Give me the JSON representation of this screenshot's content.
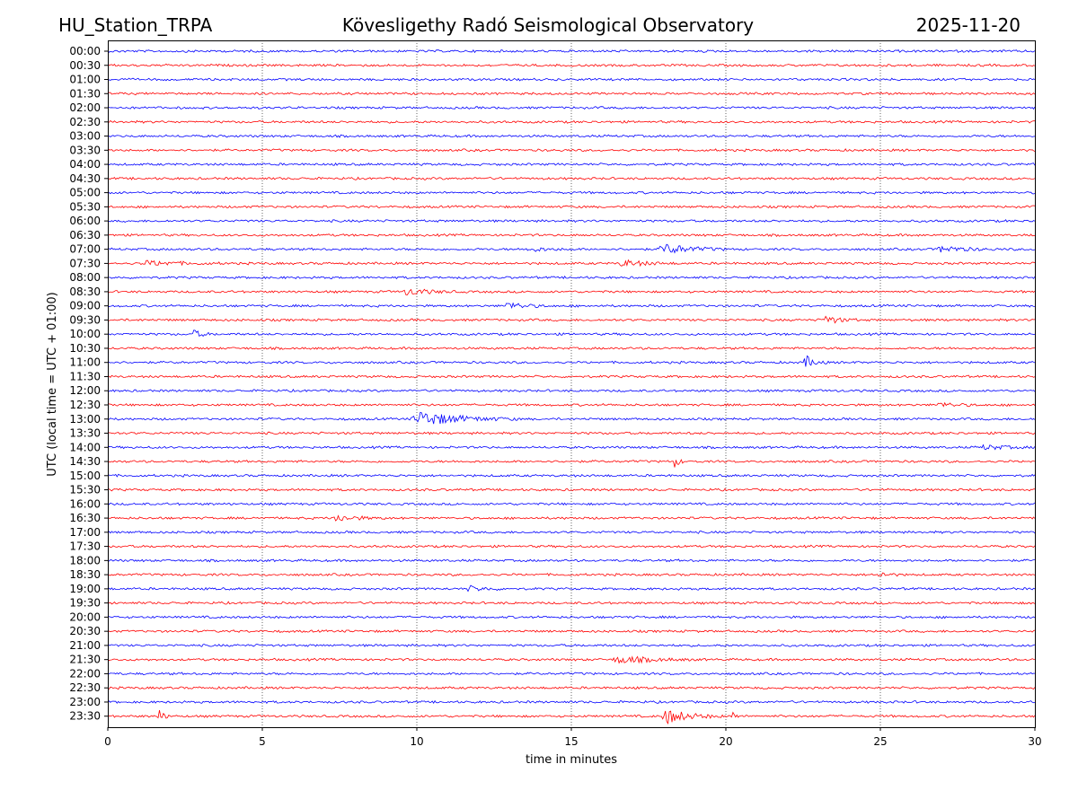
{
  "header": {
    "station": "HU_Station_TRPA",
    "observatory": "Kövesligethy Radó Seismological Observatory",
    "date": "2025-11-20"
  },
  "chart_data": {
    "type": "line",
    "title": "Kövesligethy Radó Seismological Observatory",
    "xlabel": "time in minutes",
    "ylabel": "UTC (local time = UTC + 01:00)",
    "xlim": [
      0,
      30
    ],
    "x_ticks": [
      "0",
      "5",
      "10",
      "15",
      "20",
      "25",
      "30"
    ],
    "grid": "vertical dotted lines at every 5 minutes",
    "colors": [
      "#0000ff",
      "#ff0000"
    ],
    "rows": [
      "00:00",
      "00:30",
      "01:00",
      "01:30",
      "02:00",
      "02:30",
      "03:00",
      "03:30",
      "04:00",
      "04:30",
      "05:00",
      "05:30",
      "06:00",
      "06:30",
      "07:00",
      "07:30",
      "08:00",
      "08:30",
      "09:00",
      "09:30",
      "10:00",
      "10:30",
      "11:00",
      "11:30",
      "12:00",
      "12:30",
      "13:00",
      "13:30",
      "14:00",
      "14:30",
      "15:00",
      "15:30",
      "16:00",
      "16:30",
      "17:00",
      "17:30",
      "18:00",
      "18:30",
      "19:00",
      "19:30",
      "20:00",
      "20:30",
      "21:00",
      "21:30",
      "22:00",
      "22:30",
      "23:00",
      "23:30"
    ],
    "noise_amplitude": 1.5,
    "events": [
      {
        "row": "07:00",
        "minute": 13.5,
        "duration": 1.5,
        "amplitude": 2.5
      },
      {
        "row": "07:00",
        "minute": 17.8,
        "duration": 2.2,
        "amplitude": 6
      },
      {
        "row": "07:00",
        "minute": 26.8,
        "duration": 2.0,
        "amplitude": 3.5
      },
      {
        "row": "07:30",
        "minute": 1.0,
        "duration": 3.0,
        "amplitude": 2.5
      },
      {
        "row": "07:30",
        "minute": 16.5,
        "duration": 2.0,
        "amplitude": 3.5
      },
      {
        "row": "08:30",
        "minute": 9.5,
        "duration": 2.0,
        "amplitude": 3.5
      },
      {
        "row": "09:00",
        "minute": 12.8,
        "duration": 1.5,
        "amplitude": 4
      },
      {
        "row": "09:30",
        "minute": 23.1,
        "duration": 1.2,
        "amplitude": 5
      },
      {
        "row": "10:00",
        "minute": 2.7,
        "duration": 0.8,
        "amplitude": 4
      },
      {
        "row": "11:00",
        "minute": 22.5,
        "duration": 0.8,
        "amplitude": 7
      },
      {
        "row": "12:30",
        "minute": 26.8,
        "duration": 1.5,
        "amplitude": 2.5
      },
      {
        "row": "13:00",
        "minute": 9.8,
        "duration": 3.5,
        "amplitude": 8
      },
      {
        "row": "14:00",
        "minute": 28.2,
        "duration": 1.8,
        "amplitude": 2.5
      },
      {
        "row": "14:30",
        "minute": 18.3,
        "duration": 0.4,
        "amplitude": 6
      },
      {
        "row": "16:30",
        "minute": 7.2,
        "duration": 1.8,
        "amplitude": 3.5
      },
      {
        "row": "18:30",
        "minute": 24.9,
        "duration": 0.8,
        "amplitude": 3
      },
      {
        "row": "19:00",
        "minute": 11.5,
        "duration": 1.5,
        "amplitude": 3
      },
      {
        "row": "21:30",
        "minute": 16.3,
        "duration": 2.8,
        "amplitude": 4
      },
      {
        "row": "23:30",
        "minute": 1.6,
        "duration": 0.4,
        "amplitude": 9
      },
      {
        "row": "23:30",
        "minute": 17.9,
        "duration": 2.0,
        "amplitude": 8
      },
      {
        "row": "23:30",
        "minute": 20.2,
        "duration": 0.3,
        "amplitude": 5
      }
    ]
  }
}
